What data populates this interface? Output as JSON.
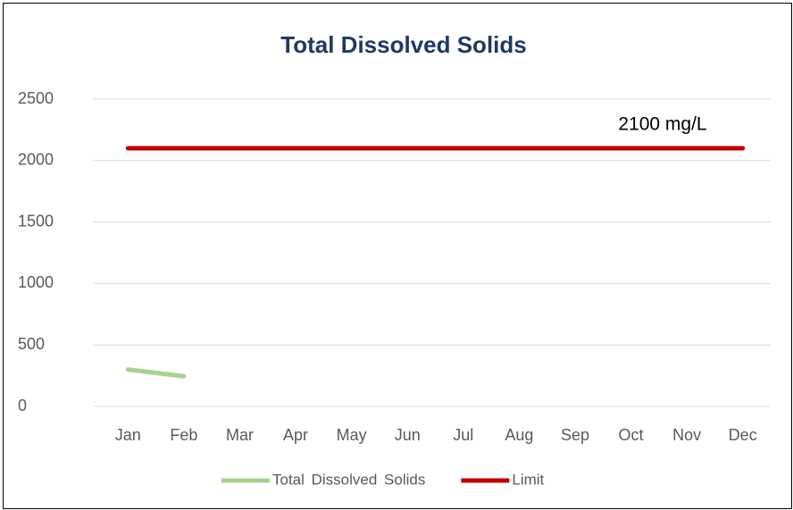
{
  "chart_data": {
    "type": "line",
    "title": "Total Dissolved Solids",
    "categories": [
      "Jan",
      "Feb",
      "Mar",
      "Apr",
      "May",
      "Jun",
      "Jul",
      "Aug",
      "Sep",
      "Oct",
      "Nov",
      "Dec"
    ],
    "series": [
      {
        "name": "Total Dissolved Solids",
        "color": "#a9d18e",
        "values": [
          300,
          245,
          null,
          null,
          null,
          null,
          null,
          null,
          null,
          null,
          null,
          null
        ]
      },
      {
        "name": "Limit",
        "color": "#c00000",
        "values": [
          2100,
          2100,
          2100,
          2100,
          2100,
          2100,
          2100,
          2100,
          2100,
          2100,
          2100,
          2100
        ]
      }
    ],
    "annotation": "2100 mg/L",
    "ylim": [
      0,
      2500
    ],
    "yticks": [
      0,
      500,
      1000,
      1500,
      2000,
      2500
    ],
    "grid": true,
    "legend": "bottom"
  }
}
